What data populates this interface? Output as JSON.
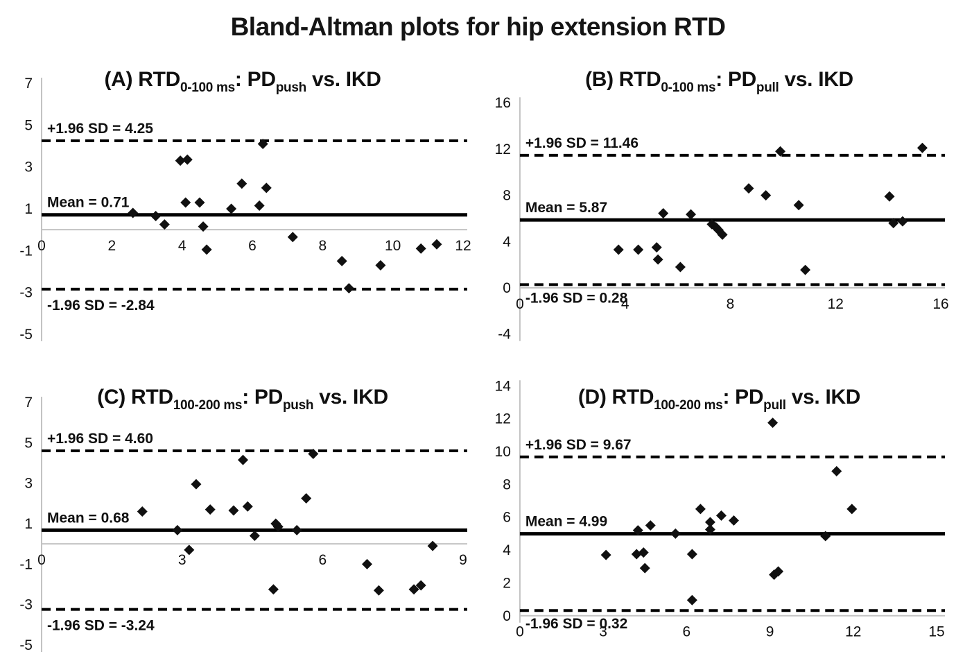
{
  "page_title": "Bland-Altman plots for hip extension RTD",
  "colors": {
    "ink": "#101010",
    "line_black": "#000000",
    "axis_gray": "#c3c3c3",
    "background": "#ffffff"
  },
  "chart_data": [
    {
      "id": "A",
      "type": "scatter",
      "marker": "diamond",
      "legend": "none",
      "grid": "off",
      "title_parts": [
        {
          "text": "(A) RTD",
          "sub": false
        },
        {
          "text": "0-100 ms",
          "sub": true
        },
        {
          "text": ": PD",
          "sub": false
        },
        {
          "text": "push",
          "sub": true
        },
        {
          "text": " vs. IKD",
          "sub": false
        }
      ],
      "xlim": [
        0,
        12
      ],
      "x_ticks": [
        0,
        2,
        4,
        6,
        8,
        10,
        12
      ],
      "ylim": [
        -5,
        7
      ],
      "y_ticks": [
        7,
        5,
        3,
        1,
        -1,
        -3,
        -5
      ],
      "mean": {
        "value": 0.71,
        "label": "Mean = 0.71"
      },
      "upper_loa": {
        "value": 4.25,
        "label": "+1.96 SD = 4.25"
      },
      "lower_loa": {
        "value": -2.84,
        "label": "-1.96 SD = -2.84"
      },
      "points": [
        [
          2.6,
          0.8
        ],
        [
          3.25,
          0.65
        ],
        [
          3.5,
          0.25
        ],
        [
          3.95,
          3.3
        ],
        [
          4.15,
          3.35
        ],
        [
          4.1,
          1.3
        ],
        [
          4.5,
          1.3
        ],
        [
          4.6,
          0.15
        ],
        [
          4.7,
          -0.95
        ],
        [
          5.4,
          1.0
        ],
        [
          5.7,
          2.2
        ],
        [
          6.2,
          1.15
        ],
        [
          6.3,
          4.1
        ],
        [
          6.4,
          2.0
        ],
        [
          7.15,
          -0.35
        ],
        [
          8.55,
          -1.5
        ],
        [
          8.75,
          -2.8
        ],
        [
          9.65,
          -1.7
        ],
        [
          10.8,
          -0.9
        ],
        [
          11.25,
          -0.7
        ]
      ]
    },
    {
      "id": "B",
      "type": "scatter",
      "marker": "diamond",
      "legend": "none",
      "grid": "off",
      "title_parts": [
        {
          "text": "(B) RTD",
          "sub": false
        },
        {
          "text": "0-100 ms",
          "sub": true
        },
        {
          "text": ": PD",
          "sub": false
        },
        {
          "text": "pull",
          "sub": true
        },
        {
          "text": " vs. IKD",
          "sub": false
        }
      ],
      "xlim": [
        0,
        16
      ],
      "x_ticks": [
        0,
        4,
        8,
        12,
        16
      ],
      "ylim": [
        -4,
        16
      ],
      "y_ticks": [
        16,
        12,
        8,
        4,
        0,
        -4
      ],
      "mean": {
        "value": 5.87,
        "label": "Mean = 5.87"
      },
      "upper_loa": {
        "value": 11.46,
        "label": "+1.96 SD = 11.46"
      },
      "lower_loa": {
        "value": 0.28,
        "label": "-1.96 SD = 0.28"
      },
      "points": [
        [
          3.75,
          3.3
        ],
        [
          4.5,
          3.3
        ],
        [
          5.2,
          3.5
        ],
        [
          5.25,
          2.45
        ],
        [
          5.45,
          6.45
        ],
        [
          6.1,
          1.8
        ],
        [
          6.5,
          6.35
        ],
        [
          7.3,
          5.5
        ],
        [
          7.45,
          5.25
        ],
        [
          7.55,
          5.0
        ],
        [
          7.7,
          4.6
        ],
        [
          8.7,
          8.6
        ],
        [
          9.35,
          8.0
        ],
        [
          9.9,
          11.8
        ],
        [
          10.6,
          7.15
        ],
        [
          10.85,
          1.55
        ],
        [
          14.05,
          7.9
        ],
        [
          14.2,
          5.6
        ],
        [
          14.55,
          5.75
        ],
        [
          15.3,
          12.1
        ]
      ]
    },
    {
      "id": "C",
      "type": "scatter",
      "marker": "diamond",
      "legend": "none",
      "grid": "off",
      "title_parts": [
        {
          "text": "(C) RTD",
          "sub": false
        },
        {
          "text": "100-200 ms",
          "sub": true
        },
        {
          "text": ": PD",
          "sub": false
        },
        {
          "text": "push",
          "sub": true
        },
        {
          "text": " vs. IKD",
          "sub": false
        }
      ],
      "xlim": [
        0,
        9
      ],
      "x_ticks": [
        0,
        3,
        6,
        9
      ],
      "ylim": [
        -5,
        7
      ],
      "y_ticks": [
        7,
        5,
        3,
        1,
        -1,
        -3,
        -5
      ],
      "mean": {
        "value": 0.68,
        "label": "Mean = 0.68"
      },
      "upper_loa": {
        "value": 4.6,
        "label": "+1.96 SD = 4.60"
      },
      "lower_loa": {
        "value": -3.24,
        "label": "-1.96 SD = -3.24"
      },
      "points": [
        [
          2.15,
          1.6
        ],
        [
          2.9,
          0.68
        ],
        [
          3.15,
          -0.3
        ],
        [
          3.3,
          2.95
        ],
        [
          3.6,
          1.7
        ],
        [
          4.1,
          1.65
        ],
        [
          4.3,
          4.15
        ],
        [
          4.4,
          1.85
        ],
        [
          4.55,
          0.4
        ],
        [
          4.95,
          -2.25
        ],
        [
          5.0,
          1.0
        ],
        [
          5.05,
          0.85
        ],
        [
          5.45,
          0.68
        ],
        [
          5.65,
          2.25
        ],
        [
          5.8,
          4.45
        ],
        [
          6.95,
          -1.0
        ],
        [
          7.2,
          -2.3
        ],
        [
          7.95,
          -2.25
        ],
        [
          8.1,
          -2.05
        ],
        [
          8.35,
          -0.1
        ]
      ]
    },
    {
      "id": "D",
      "type": "scatter",
      "marker": "diamond",
      "legend": "none",
      "grid": "off",
      "title_parts": [
        {
          "text": "(D) RTD",
          "sub": false
        },
        {
          "text": "100-200 ms",
          "sub": true
        },
        {
          "text": ": PD",
          "sub": false
        },
        {
          "text": "pull",
          "sub": true
        },
        {
          "text": " vs. IKD",
          "sub": false
        }
      ],
      "xlim": [
        0,
        15
      ],
      "x_ticks": [
        0,
        3,
        6,
        9,
        12,
        15
      ],
      "ylim": [
        0,
        14
      ],
      "y_ticks": [
        14,
        12,
        10,
        8,
        6,
        4,
        2,
        0
      ],
      "mean": {
        "value": 4.99,
        "label": "Mean = 4.99"
      },
      "upper_loa": {
        "value": 9.67,
        "label": "+1.96 SD = 9.67"
      },
      "lower_loa": {
        "value": 0.32,
        "label": "-1.96 SD = 0.32"
      },
      "points": [
        [
          3.1,
          3.7
        ],
        [
          4.2,
          3.75
        ],
        [
          4.45,
          3.85
        ],
        [
          4.5,
          2.9
        ],
        [
          4.25,
          5.2
        ],
        [
          4.7,
          5.5
        ],
        [
          5.6,
          5.0
        ],
        [
          6.2,
          3.75
        ],
        [
          6.2,
          0.95
        ],
        [
          6.5,
          6.5
        ],
        [
          6.85,
          5.7
        ],
        [
          6.85,
          5.25
        ],
        [
          7.25,
          6.1
        ],
        [
          7.7,
          5.8
        ],
        [
          9.15,
          2.5
        ],
        [
          9.3,
          2.7
        ],
        [
          9.1,
          11.75
        ],
        [
          11.0,
          4.85
        ],
        [
          11.4,
          8.8
        ],
        [
          11.95,
          6.5
        ]
      ]
    }
  ]
}
